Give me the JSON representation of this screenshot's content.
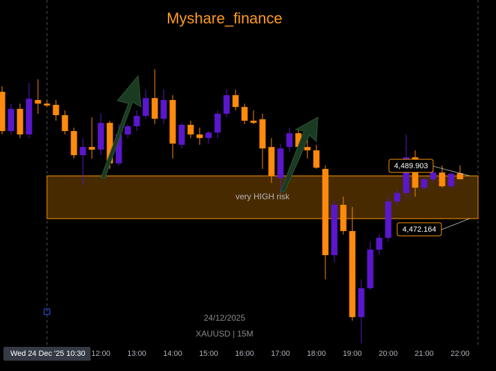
{
  "chart_data": {
    "type": "candlestick",
    "title": "Myshare_finance",
    "watermark": [
      "24/12/2025",
      "XAUUSD | 15M"
    ],
    "crosshair": {
      "date": "Wed 24 Dec '25",
      "time": "10:30"
    },
    "categories": [
      null,
      null,
      null,
      null,
      null,
      null,
      null,
      null,
      null,
      null,
      null,
      "12:00",
      null,
      null,
      null,
      "13:00",
      null,
      null,
      null,
      "14:00",
      null,
      null,
      null,
      "15:00",
      null,
      null,
      null,
      "16:00",
      null,
      null,
      null,
      "17:00",
      null,
      null,
      null,
      "18:00",
      null,
      null,
      null,
      "19:00",
      null,
      null,
      null,
      "20:00",
      null,
      null,
      null,
      "21:00",
      null,
      null,
      null,
      "22:00"
    ],
    "open": [
      4524.8,
      4508.5,
      4517.7,
      4507.1,
      4521.4,
      4519.9,
      4519.4,
      4515.1,
      4508.5,
      4498.5,
      4501.9,
      4500.8,
      4511.9,
      4495.1,
      4507.1,
      4510.5,
      4514.8,
      4522.2,
      4513.6,
      4521.4,
      4502.8,
      4511.1,
      4507.1,
      4505.6,
      4507.9,
      4515.7,
      4523.4,
      4518.5,
      4512.8,
      4513.4,
      4501.9,
      4489.0,
      4501.9,
      4507.6,
      4501.9,
      4500.5,
      4492.8,
      4457.0,
      4477.9,
      4467.0,
      4431.3,
      4443.3,
      4459.3,
      4464.2,
      4479.3,
      4482.8,
      4497.6,
      4485.0,
      4488.5,
      4491.3,
      4485.6,
      4491.0
    ],
    "high": [
      4527.1,
      4519.9,
      4519.9,
      4528.5,
      4530.0,
      4521.4,
      4521.4,
      4517.1,
      4509.9,
      4505.6,
      4514.2,
      4515.7,
      4512.8,
      4511.4,
      4511.4,
      4517.1,
      4525.7,
      4534.2,
      4525.7,
      4523.4,
      4511.9,
      4512.8,
      4509.9,
      4508.5,
      4517.1,
      4525.7,
      4525.7,
      4519.9,
      4517.1,
      4515.7,
      4505.6,
      4503.3,
      4509.9,
      4509.9,
      4507.1,
      4502.8,
      4494.2,
      4479.3,
      4481.3,
      4477.0,
      4447.0,
      4462.7,
      4465.6,
      4481.3,
      4484.2,
      4507.1,
      4500.5,
      4489.9,
      4492.8,
      4494.2,
      4491.3,
      4494.2
    ],
    "low": [
      4507.1,
      4507.1,
      4505.6,
      4505.6,
      4515.7,
      4518.5,
      4512.8,
      4507.1,
      4497.1,
      4486.2,
      4497.1,
      4498.5,
      4492.8,
      4494.2,
      4505.6,
      4508.5,
      4513.6,
      4511.4,
      4511.4,
      4497.1,
      4501.3,
      4505.6,
      4502.8,
      4503.3,
      4505.6,
      4514.2,
      4517.1,
      4511.4,
      4511.4,
      4492.8,
      4487.0,
      4482.8,
      4499.9,
      4500.8,
      4497.1,
      4492.8,
      4447.0,
      4454.1,
      4465.6,
      4429.8,
      4420.4,
      4442.7,
      4457.0,
      4462.7,
      4477.9,
      4481.3,
      4481.3,
      4484.2,
      4487.0,
      4485.0,
      4485.0,
      4488.5
    ],
    "close": [
      4508.5,
      4517.7,
      4507.1,
      4521.9,
      4519.9,
      4519.1,
      4515.1,
      4508.5,
      4498.5,
      4501.9,
      4500.8,
      4511.9,
      4495.1,
      4507.1,
      4510.5,
      4514.8,
      4522.2,
      4513.6,
      4521.4,
      4503.3,
      4511.1,
      4507.1,
      4505.6,
      4507.9,
      4515.7,
      4523.4,
      4518.5,
      4512.8,
      4511.9,
      4501.3,
      4489.9,
      4501.3,
      4507.6,
      4501.9,
      4500.5,
      4493.3,
      4457.0,
      4477.9,
      4467.0,
      4431.3,
      4443.3,
      4459.3,
      4464.2,
      4479.3,
      4482.8,
      4497.6,
      4485.0,
      4488.5,
      4491.3,
      4485.6,
      4490.8,
      4488.5
    ],
    "up_color": "#5a17cc",
    "down_color": "#ff8a0d",
    "ylim": [
      4419.8,
      4562.9
    ],
    "zone": {
      "label": "very HIGH risk",
      "top": 4489.903,
      "bottom": 4472.164,
      "value_labels": [
        "4,489.903",
        "4,472.164"
      ],
      "color": "#ff9800"
    }
  }
}
